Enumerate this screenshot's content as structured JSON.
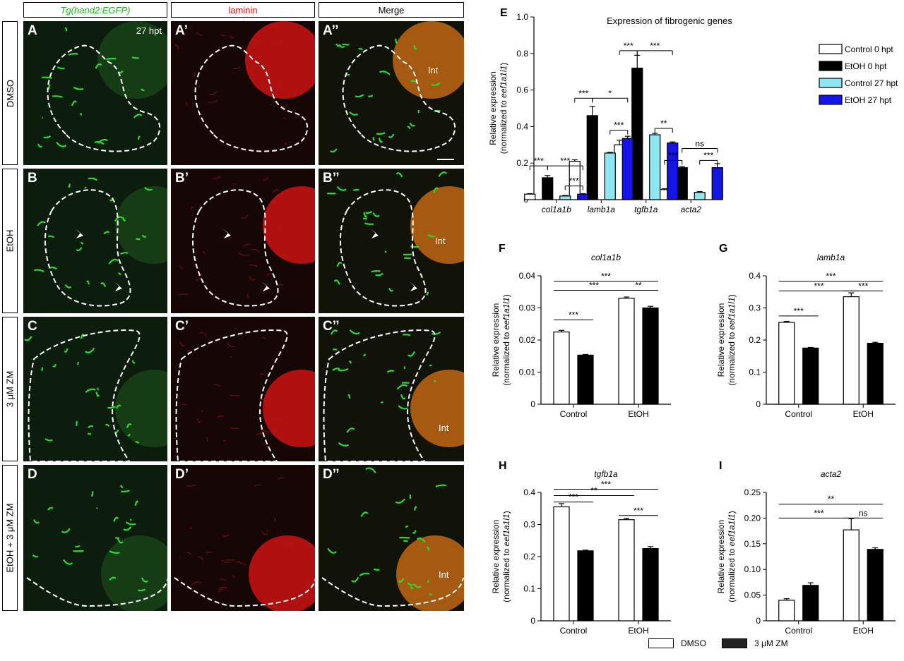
{
  "micrographs": {
    "column_headers": [
      {
        "text": "Tg(hand2:EGFP)",
        "color": "#22b022",
        "italic": true
      },
      {
        "text": "laminin",
        "color": "#e01010",
        "italic": false
      },
      {
        "text": "Merge",
        "color": "#000000",
        "italic": false
      }
    ],
    "row_labels": [
      "DMSO",
      "EtOH",
      "3 μM ZM",
      "EtOH + 3 μM ZM"
    ],
    "panel_labels": [
      [
        "A",
        "A’",
        "A’’"
      ],
      [
        "B",
        "B’",
        "B’’"
      ],
      [
        "C",
        "C’",
        "C’’"
      ],
      [
        "D",
        "D’",
        "D’’"
      ]
    ],
    "timepoint_label": "27 hpt",
    "intestine_label": "Int"
  },
  "chart_data": [
    {
      "id": "E",
      "type": "bar",
      "title": "Expression of fibrogenic genes",
      "ylabel": "Relative expression",
      "ylabel_sub_prefix": "(normalized to ",
      "ylabel_sub_gene": "eef1a1l1",
      "ylabel_sub_suffix": ")",
      "ylim": [
        0,
        1.0
      ],
      "yticks": [
        "0",
        "0.2",
        "0.4",
        "0.6",
        "0.8",
        "1.0"
      ],
      "categories": [
        "col1a1b",
        "lamb1a",
        "tgfb1a",
        "acta2"
      ],
      "series": [
        {
          "name": "Control 0 hpt",
          "color": "#ffffff",
          "values": [
            0.03,
            0.21,
            0.3,
            0.055
          ],
          "errors": [
            0.003,
            0.008,
            0.025,
            0.005
          ]
        },
        {
          "name": "EtOH 0 hpt",
          "color": "#000000",
          "values": [
            0.12,
            0.46,
            0.72,
            0.175
          ],
          "errors": [
            0.012,
            0.05,
            0.07,
            0.006
          ]
        },
        {
          "name": "Control 27 hpt",
          "color": "#8de6f2",
          "values": [
            0.02,
            0.255,
            0.355,
            0.04
          ],
          "errors": [
            0.003,
            0.004,
            0.008,
            0.004
          ]
        },
        {
          "name": "EtOH 27 hpt",
          "color": "#1414e6",
          "values": [
            0.03,
            0.335,
            0.31,
            0.175
          ],
          "errors": [
            0.003,
            0.012,
            0.006,
            0.022
          ]
        }
      ],
      "significance": [
        {
          "cat": 0,
          "from": 0,
          "to": 1,
          "y": 0.185,
          "label": "***"
        },
        {
          "cat": 0,
          "from": 1,
          "to": 3,
          "y": 0.185,
          "label": "***"
        },
        {
          "cat": 0,
          "from": 2,
          "to": 3,
          "y": 0.075,
          "label": "***"
        },
        {
          "cat": 1,
          "from": 0,
          "to": 1,
          "y": 0.555,
          "label": "***"
        },
        {
          "cat": 1,
          "from": 1,
          "to": 3,
          "y": 0.555,
          "label": "*"
        },
        {
          "cat": 1,
          "from": 2,
          "to": 3,
          "y": 0.38,
          "label": "***"
        },
        {
          "cat": 2,
          "from": 0,
          "to": 1,
          "y": 0.815,
          "label": "***"
        },
        {
          "cat": 2,
          "from": 1,
          "to": 3,
          "y": 0.815,
          "label": "***"
        },
        {
          "cat": 2,
          "from": 2,
          "to": 3,
          "y": 0.39,
          "label": "**"
        },
        {
          "cat": 3,
          "from": 0,
          "to": 1,
          "y": 0.215,
          "label": "***"
        },
        {
          "cat": 3,
          "from": 1,
          "to": 3,
          "y": 0.28,
          "label": "ns"
        },
        {
          "cat": 3,
          "from": 2,
          "to": 3,
          "y": 0.215,
          "label": "***"
        }
      ]
    },
    {
      "id": "F",
      "type": "bar",
      "title": "col1a1b",
      "ylabel": "Relative expression",
      "ylabel_sub_prefix": "(normalized to ",
      "ylabel_sub_gene": "eef1a1l1",
      "ylabel_sub_suffix": ")",
      "ylim": [
        0,
        0.04
      ],
      "yticks": [
        "0",
        "0.01",
        "0.02",
        "0.03",
        "0.04"
      ],
      "categories": [
        "Control",
        "EtOH"
      ],
      "series": [
        {
          "name": "DMSO",
          "color": "#ffffff",
          "values": [
            0.0225,
            0.033
          ],
          "errors": [
            0.0005,
            0.0004
          ]
        },
        {
          "name": "3 μM ZM",
          "color": "#000000",
          "values": [
            0.0153,
            0.03
          ],
          "errors": [
            0.0002,
            0.0005
          ]
        }
      ],
      "significance": [
        {
          "a": [
            0,
            0
          ],
          "b": [
            0,
            1
          ],
          "y": 0.0263,
          "label": "***"
        },
        {
          "a": [
            0,
            0
          ],
          "b": [
            1,
            0
          ],
          "y": 0.0355,
          "label": "***"
        },
        {
          "a": [
            1,
            0
          ],
          "b": [
            1,
            1
          ],
          "y": 0.0355,
          "label": "**"
        },
        {
          "a": [
            0,
            0
          ],
          "b": [
            1,
            1
          ],
          "y": 0.0383,
          "label": "***"
        }
      ]
    },
    {
      "id": "G",
      "type": "bar",
      "title": "lamb1a",
      "ylabel": "Relative expression",
      "ylabel_sub_prefix": "(normalized to ",
      "ylabel_sub_gene": "eef1a1l1",
      "ylabel_sub_suffix": ")",
      "ylim": [
        0,
        0.4
      ],
      "yticks": [
        "0",
        "0.1",
        "0.2",
        "0.3",
        "0.4"
      ],
      "categories": [
        "Control",
        "EtOH"
      ],
      "series": [
        {
          "name": "DMSO",
          "color": "#ffffff",
          "values": [
            0.255,
            0.335
          ],
          "errors": [
            0.003,
            0.012
          ]
        },
        {
          "name": "3 μM ZM",
          "color": "#000000",
          "values": [
            0.175,
            0.19
          ],
          "errors": [
            0.002,
            0.003
          ]
        }
      ],
      "significance": [
        {
          "a": [
            0,
            0
          ],
          "b": [
            0,
            1
          ],
          "y": 0.275,
          "label": "***"
        },
        {
          "a": [
            0,
            0
          ],
          "b": [
            1,
            0
          ],
          "y": 0.353,
          "label": "***"
        },
        {
          "a": [
            1,
            0
          ],
          "b": [
            1,
            1
          ],
          "y": 0.353,
          "label": "***"
        },
        {
          "a": [
            0,
            0
          ],
          "b": [
            1,
            1
          ],
          "y": 0.383,
          "label": "***"
        }
      ]
    },
    {
      "id": "H",
      "type": "bar",
      "title": "tgfb1a",
      "ylabel": "Relative expression",
      "ylabel_sub_prefix": "(normalized to ",
      "ylabel_sub_gene": "eef1a1l1",
      "ylabel_sub_suffix": ")",
      "ylim": [
        0,
        0.4
      ],
      "yticks": [
        "0",
        "0.1",
        "0.2",
        "0.3",
        "0.4"
      ],
      "categories": [
        "Control",
        "EtOH"
      ],
      "series": [
        {
          "name": "DMSO",
          "color": "#ffffff",
          "values": [
            0.355,
            0.315
          ],
          "errors": [
            0.01,
            0.004
          ]
        },
        {
          "name": "3 μM ZM",
          "color": "#000000",
          "values": [
            0.218,
            0.225
          ],
          "errors": [
            0.002,
            0.006
          ]
        }
      ],
      "significance": [
        {
          "a": [
            0,
            0
          ],
          "b": [
            0,
            1
          ],
          "y": 0.37,
          "label": "***"
        },
        {
          "a": [
            0,
            0
          ],
          "b": [
            1,
            0
          ],
          "y": 0.39,
          "label": "**"
        },
        {
          "a": [
            1,
            0
          ],
          "b": [
            1,
            1
          ],
          "y": 0.328,
          "label": "***"
        },
        {
          "a": [
            0,
            0
          ],
          "b": [
            1,
            1
          ],
          "y": 0.41,
          "label": "***"
        }
      ]
    },
    {
      "id": "I",
      "type": "bar",
      "title": "acta2",
      "ylabel": "Relative expression",
      "ylabel_sub_prefix": "(normalized to ",
      "ylabel_sub_gene": "eef1a1l1",
      "ylabel_sub_suffix": ")",
      "ylim": [
        0,
        0.25
      ],
      "yticks": [
        "0",
        "0.05",
        "0.10",
        "0.15",
        "0.20",
        "0.25"
      ],
      "categories": [
        "Control",
        "EtOH"
      ],
      "series": [
        {
          "name": "DMSO",
          "color": "#ffffff",
          "values": [
            0.04,
            0.177
          ],
          "errors": [
            0.003,
            0.022
          ]
        },
        {
          "name": "3 μM ZM",
          "color": "#000000",
          "values": [
            0.069,
            0.139
          ],
          "errors": [
            0.005,
            0.003
          ]
        }
      ],
      "significance": [
        {
          "a": [
            0,
            0
          ],
          "b": [
            1,
            0
          ],
          "y": 0.2,
          "label": "***"
        },
        {
          "a": [
            1,
            0
          ],
          "b": [
            1,
            1
          ],
          "y": 0.2,
          "label": "ns"
        },
        {
          "a": [
            0,
            0
          ],
          "b": [
            1,
            1
          ],
          "y": 0.227,
          "label": "**"
        }
      ]
    }
  ],
  "bottom_legend": [
    {
      "label": "DMSO",
      "color": "#ffffff"
    },
    {
      "label": "3 μM ZM",
      "color": "#222222"
    }
  ]
}
